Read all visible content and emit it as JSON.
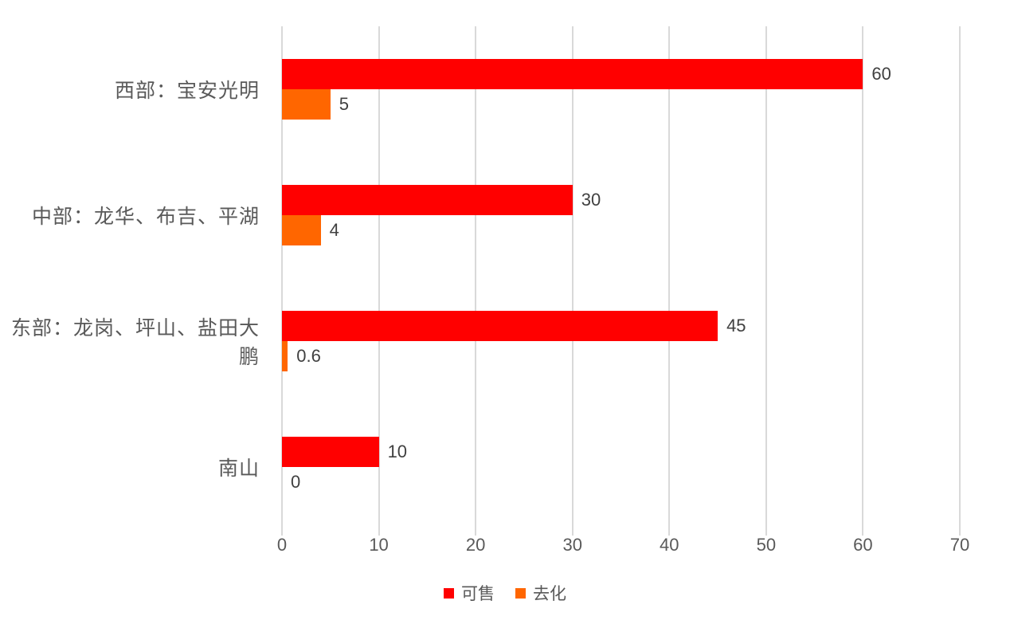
{
  "chart_data": {
    "type": "bar",
    "orientation": "horizontal",
    "title": "",
    "categories": [
      "西部：宝安光明",
      "中部：龙华、布吉、平湖",
      "东部：龙岗、坪山、盐田大鹏",
      "南山"
    ],
    "series": [
      {
        "name": "可售",
        "color": "#FF0000",
        "values": [
          60,
          30,
          45,
          10
        ]
      },
      {
        "name": "去化",
        "color": "#FF6600",
        "values": [
          5,
          4,
          0.6,
          0
        ]
      }
    ],
    "value_labels": [
      [
        "60",
        "5"
      ],
      [
        "30",
        "4"
      ],
      [
        "45",
        "0.6"
      ],
      [
        "10",
        "0"
      ]
    ],
    "xlim": [
      0,
      70
    ],
    "x_ticks": [
      0,
      10,
      20,
      30,
      40,
      50,
      60,
      70
    ],
    "grid": true,
    "legend_position": "bottom"
  },
  "colors": {
    "background": "#FFFFFF",
    "gridline": "#D9D9D9",
    "category_label": "#595959",
    "tick_label": "#595959",
    "value_label": "#404040",
    "series1": "#FF0000",
    "series2": "#FF6600"
  }
}
